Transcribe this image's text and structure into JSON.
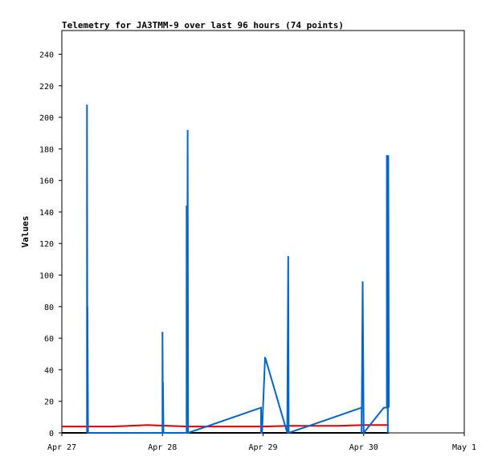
{
  "chart_data": {
    "type": "line",
    "title": "Telemetry for JA3TMM-9 over last 96 hours (74 points)",
    "ylabel": "Values",
    "xlabel": "",
    "ylim": [
      0,
      255
    ],
    "yticks": [
      0,
      20,
      40,
      60,
      80,
      100,
      120,
      140,
      160,
      180,
      200,
      220,
      240
    ],
    "xlim": [
      0,
      4
    ],
    "xticks": [
      {
        "x": 0,
        "label": "Apr 27"
      },
      {
        "x": 1,
        "label": "Apr 28"
      },
      {
        "x": 2,
        "label": "Apr 29"
      },
      {
        "x": 3,
        "label": "Apr 30"
      },
      {
        "x": 4,
        "label": "May 1"
      }
    ],
    "x_unit": "days since Apr 27 00:00",
    "grid": false,
    "series": [
      {
        "color": "#000000",
        "points": [
          [
            0,
            0
          ],
          [
            3.25,
            0
          ]
        ]
      },
      {
        "color": "#dd0000",
        "points": [
          [
            0,
            4
          ],
          [
            0.5,
            4
          ],
          [
            0.85,
            5
          ],
          [
            1.25,
            4
          ],
          [
            2.0,
            4
          ],
          [
            2.25,
            4.5
          ],
          [
            2.75,
            4.5
          ],
          [
            3.0,
            5
          ],
          [
            3.25,
            5
          ]
        ]
      },
      {
        "color": "#0066cc",
        "points": [
          [
            0.25,
            0
          ],
          [
            0.25,
            208
          ],
          [
            0.255,
            0
          ],
          [
            0.255,
            80
          ],
          [
            0.26,
            0
          ],
          [
            1.0,
            0
          ],
          [
            1.0,
            64
          ],
          [
            1.005,
            0
          ],
          [
            1.005,
            32
          ],
          [
            1.01,
            0
          ],
          [
            1.24,
            0
          ],
          [
            1.24,
            144
          ],
          [
            1.245,
            0
          ],
          [
            1.25,
            192
          ],
          [
            1.255,
            0
          ],
          [
            1.98,
            16
          ],
          [
            1.98,
            0
          ],
          [
            1.99,
            0
          ],
          [
            2.02,
            48
          ],
          [
            2.24,
            0
          ],
          [
            2.25,
            112
          ],
          [
            2.255,
            0
          ],
          [
            2.98,
            16
          ],
          [
            2.98,
            0
          ],
          [
            2.99,
            96
          ],
          [
            3.0,
            0
          ],
          [
            3.2,
            16
          ],
          [
            3.23,
            16
          ],
          [
            3.23,
            176
          ],
          [
            3.24,
            0
          ],
          [
            3.245,
            176
          ],
          [
            3.25,
            16
          ]
        ]
      }
    ]
  }
}
